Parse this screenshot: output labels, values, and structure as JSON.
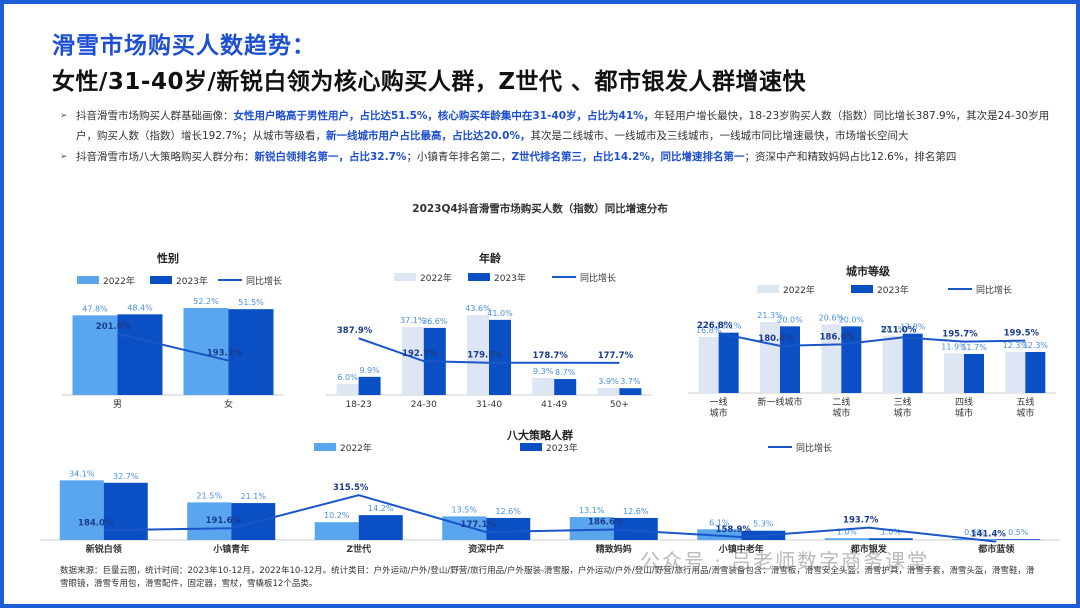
{
  "heading": {
    "title1": "滑雪市场购买人数趋势：",
    "title2": "女性/31-40岁/新锐白领为核心购买人群，Z世代 、都市银发人群增速快"
  },
  "bullets": [
    {
      "marker": "➢",
      "parts": [
        {
          "t": "抖音滑雪市场购买人群基础画像：",
          "hl": false
        },
        {
          "t": "女性用户略高于男性用户，占比达51.5%，核心购买年龄集中在31-40岁，占比为41%，",
          "hl": true
        },
        {
          "t": "年轻用户增长最快，18-23岁购买人数（指数）同比增长387.9%，其次是24-30岁用户，购买人数（指数）增长192.7%；从城市等级看，",
          "hl": false
        },
        {
          "t": "新一线城市用户占比最高，占比达20.0%，",
          "hl": true
        },
        {
          "t": "其次是二线城市、一线城市及三线城市，一线城市同比增速最快，市场增长空间大",
          "hl": false
        }
      ]
    },
    {
      "marker": "➢",
      "parts": [
        {
          "t": "抖音滑雪市场八大策略购买人群分布：",
          "hl": false
        },
        {
          "t": "新锐白领排名第一，占比32.7%",
          "hl": true
        },
        {
          "t": "；小镇青年排名第二，",
          "hl": false
        },
        {
          "t": "Z世代排名第三，占比14.2%，同比增速排名第一",
          "hl": true
        },
        {
          "t": "；资深中产和精致妈妈占比12.6%，排名第四",
          "hl": false
        }
      ]
    }
  ],
  "main_chart_title": "2023Q4抖音滑雪市场购买人数（指数）同比增速分布",
  "source": "数据来源：巨量云图，统计时间：2023年10-12月，2022年10-12月。统计类目：户外运动/户外/登山/野营/旅行用品/户外服装-滑雪服，户外运动/户外/登山/野营/旅行用品/滑雪装备包含：滑雪板，滑雪安全头盔，滑雪护具，滑雪手套，滑雪头盔，滑雪鞋，滑雪眼镜，滑雪专用包，滑雪配件，固定器，雪杖，雪橇板12个品类。",
  "watermark": "公众号 · 吕老师数字商务课堂",
  "colors": {
    "y2022": "#5aa6ee",
    "y2023": "#0b4fc4",
    "y2022_age": "#dfe6f3",
    "line": "#1a56c8",
    "label_light": "#4a8fe0"
  },
  "chart_data": [
    {
      "type": "bar",
      "title": "性别",
      "categories": [
        "男",
        "女"
      ],
      "series": [
        {
          "name": "2022年",
          "values": [
            47.8,
            52.2
          ],
          "unit": "%"
        },
        {
          "name": "2023年",
          "values": [
            48.4,
            51.5
          ],
          "unit": "%"
        },
        {
          "name": "同比增长",
          "type": "line",
          "values": [
            201.0,
            193.3
          ],
          "unit": "%"
        }
      ]
    },
    {
      "type": "bar",
      "title": "年龄",
      "categories": [
        "18-23",
        "24-30",
        "31-40",
        "41-49",
        "50+"
      ],
      "series": [
        {
          "name": "2022年",
          "values": [
            6.0,
            37.1,
            43.6,
            9.3,
            3.9
          ],
          "unit": "%"
        },
        {
          "name": "2023年",
          "values": [
            9.9,
            36.6,
            41.0,
            8.7,
            3.7
          ],
          "unit": "%"
        },
        {
          "name": "同比增长",
          "type": "line",
          "values": [
            387.9,
            192.7,
            179.5,
            178.7,
            177.7
          ],
          "unit": "%"
        }
      ]
    },
    {
      "type": "bar",
      "title": "城市等级",
      "categories": [
        "一线\n城市",
        "新一线城市",
        "二线\n城市",
        "三线\n城市",
        "四线\n城市",
        "五线\n城市"
      ],
      "series": [
        {
          "name": "2022年",
          "values": [
            16.8,
            21.3,
            20.6,
            17.1,
            11.9,
            12.3
          ],
          "unit": "%"
        },
        {
          "name": "2023年",
          "values": [
            18.1,
            20.0,
            20.0,
            17.8,
            11.7,
            12.3
          ],
          "unit": "%"
        },
        {
          "name": "同比增长",
          "type": "line",
          "values": [
            226.8,
            180.4,
            186.0,
            211.0,
            195.7,
            199.5
          ],
          "unit": "%"
        }
      ]
    },
    {
      "type": "bar",
      "title": "八大策略人群",
      "categories": [
        "新锐白领",
        "小镇青年",
        "Z世代",
        "资深中产",
        "精致妈妈",
        "小镇中老年",
        "都市银发",
        "都市蓝领"
      ],
      "series": [
        {
          "name": "2022年",
          "values": [
            34.1,
            21.5,
            10.2,
            13.5,
            13.1,
            6.1,
            1.0,
            0.6
          ],
          "unit": "%"
        },
        {
          "name": "2023年",
          "values": [
            32.7,
            21.1,
            14.2,
            12.6,
            12.6,
            5.3,
            1.0,
            0.5
          ],
          "unit": "%"
        },
        {
          "name": "同比增长",
          "type": "line",
          "values": [
            184.0,
            191.6,
            315.5,
            177.1,
            186.6,
            158.9,
            193.7,
            141.4
          ],
          "unit": "%"
        }
      ]
    }
  ]
}
